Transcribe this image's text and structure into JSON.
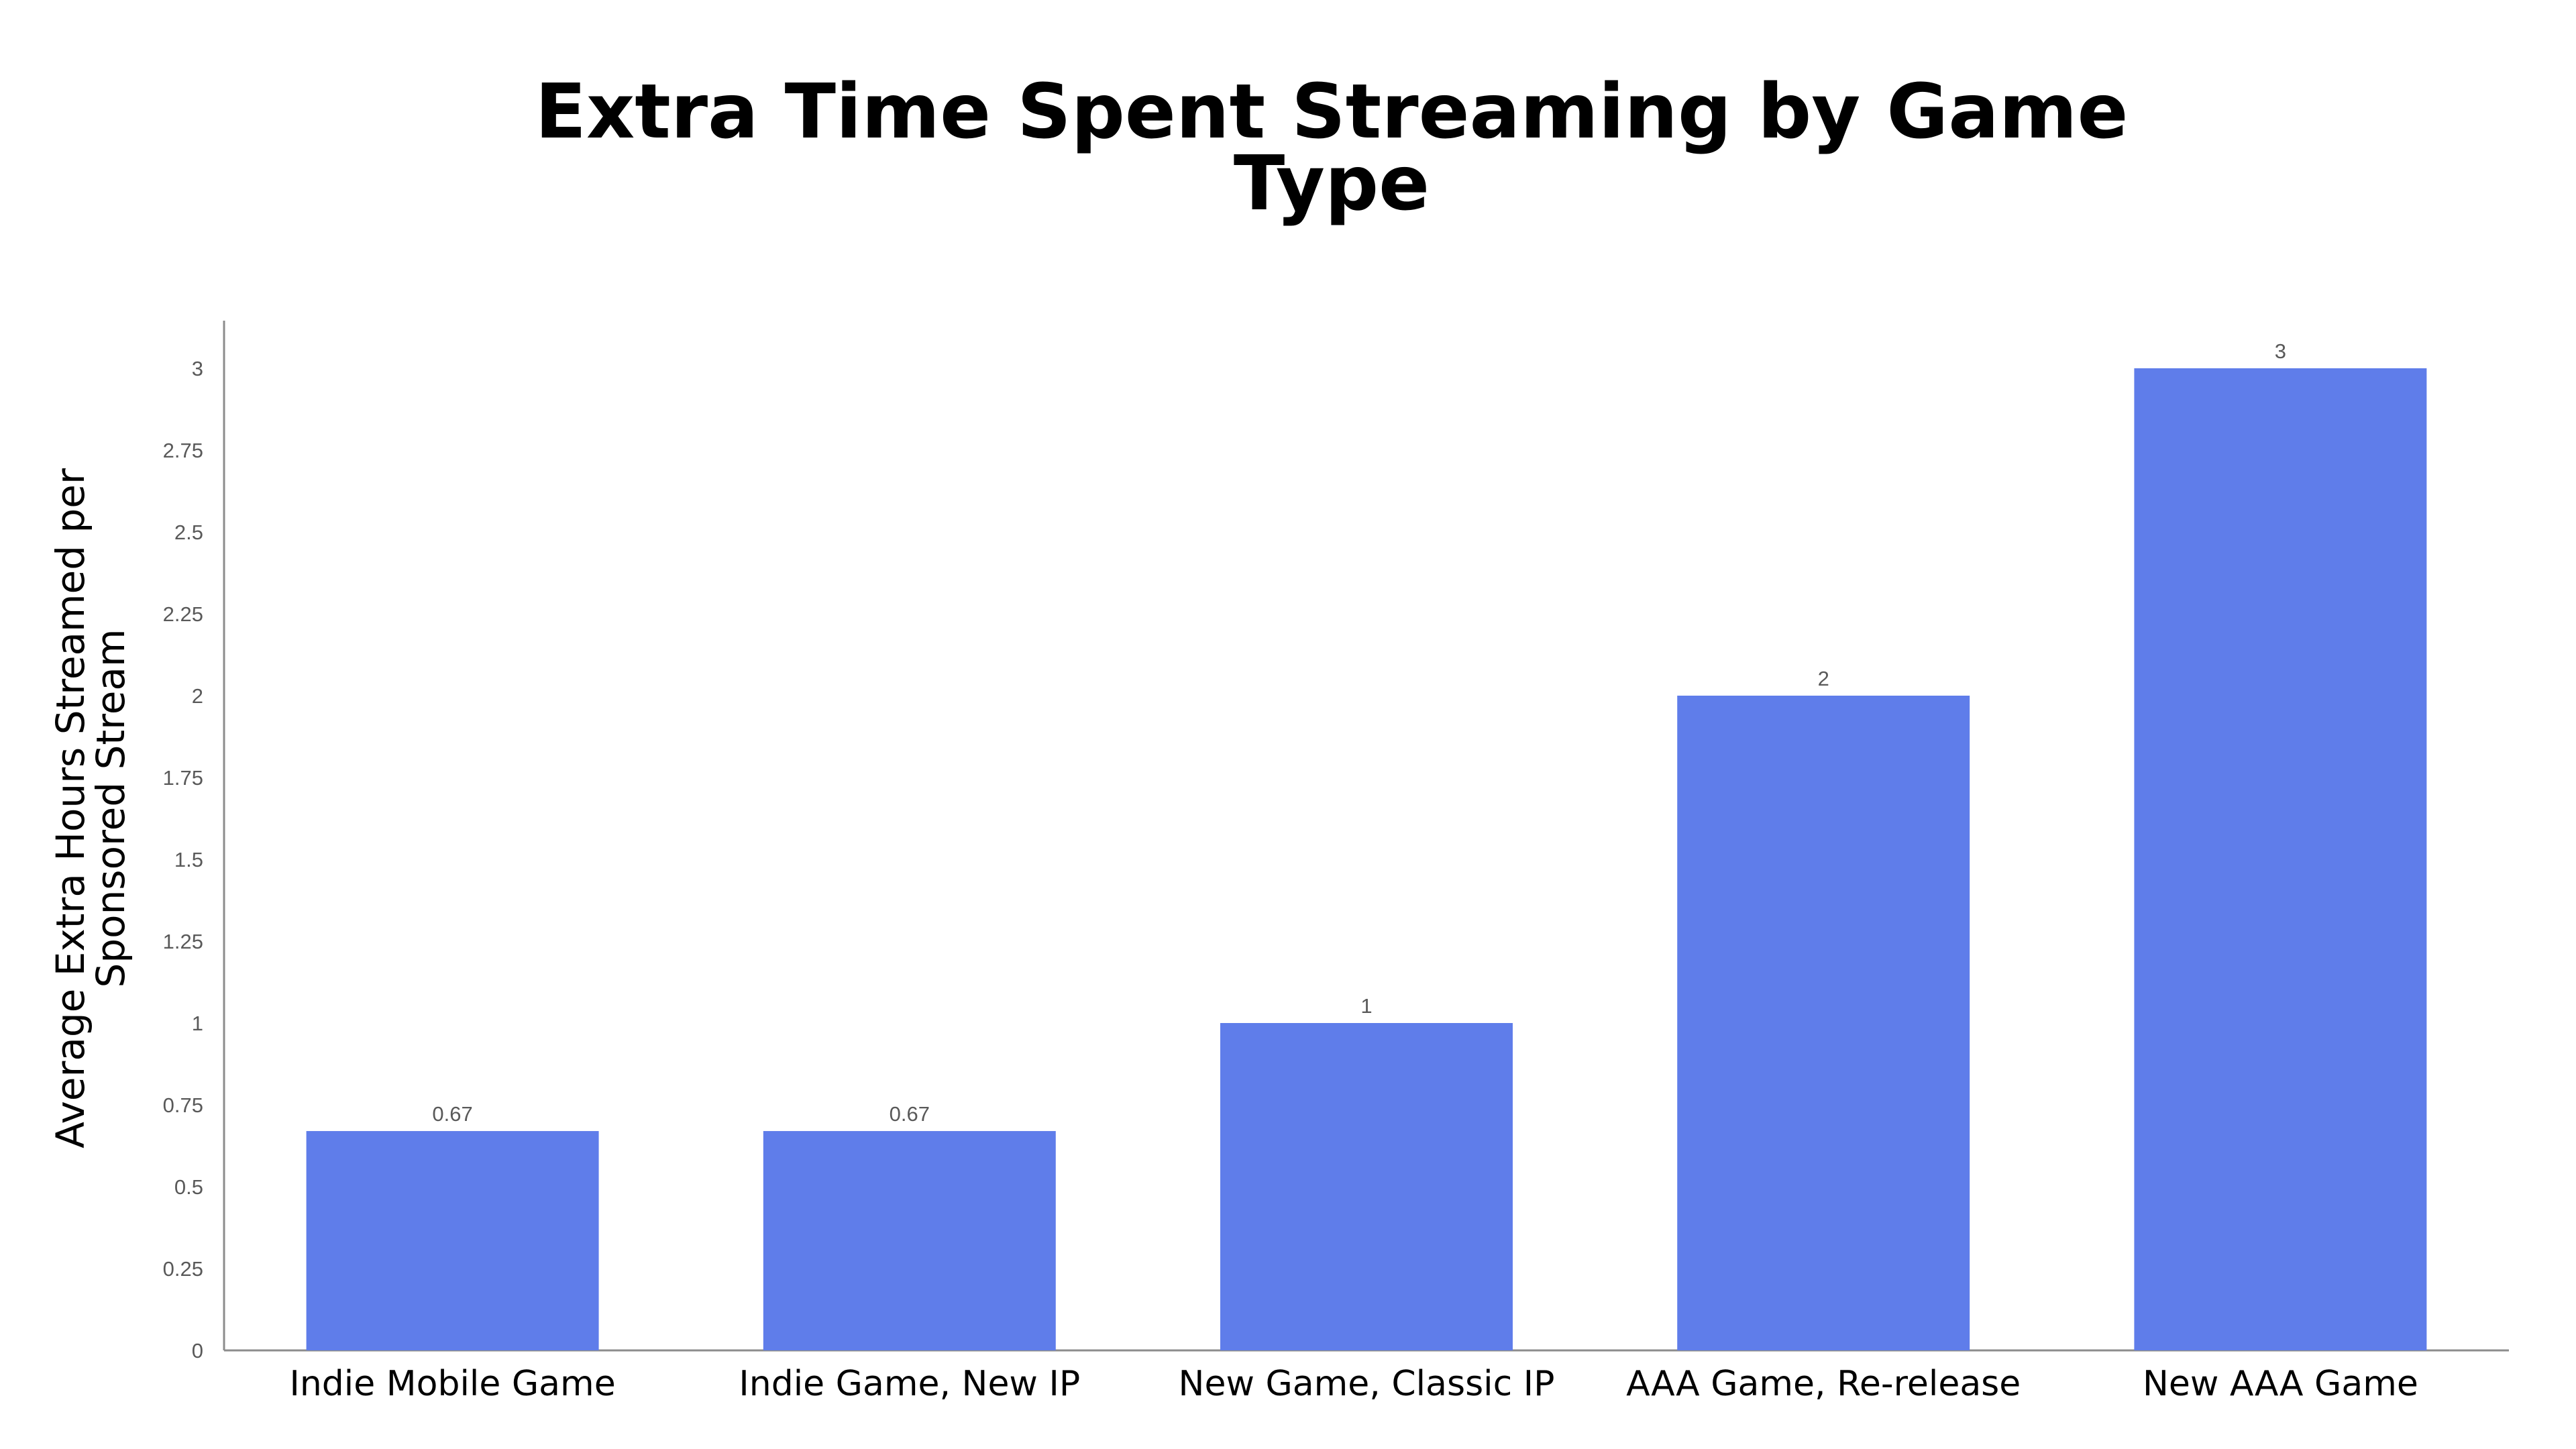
{
  "chart_data": {
    "type": "bar",
    "title_lines": [
      "Extra Time Spent Streaming by Game",
      "Type"
    ],
    "xlabel": "",
    "ylabel_lines": [
      "Average Extra Hours Streamed per",
      "Sponsored Stream"
    ],
    "categories": [
      "Indie Mobile Game",
      "Indie Game, New IP",
      "New Game, Classic IP",
      "AAA Game, Re-release",
      "New AAA Game"
    ],
    "values": [
      0.67,
      0.67,
      1,
      2,
      3
    ],
    "data_labels": [
      "0.67",
      "0.67",
      "1",
      "2",
      "3"
    ],
    "y_ticks": [
      0,
      0.25,
      0.5,
      0.75,
      1,
      1.25,
      1.5,
      1.75,
      2,
      2.25,
      2.5,
      2.75,
      3
    ],
    "y_tick_labels": [
      "0",
      "0.25",
      "0.5",
      "0.75",
      "1",
      "1.25",
      "1.5",
      "1.75",
      "2",
      "2.25",
      "2.5",
      "2.75",
      "3"
    ],
    "ylim": [
      0,
      3.15
    ],
    "grid": false,
    "legend": "none",
    "bar_color": "#5f7dea"
  }
}
